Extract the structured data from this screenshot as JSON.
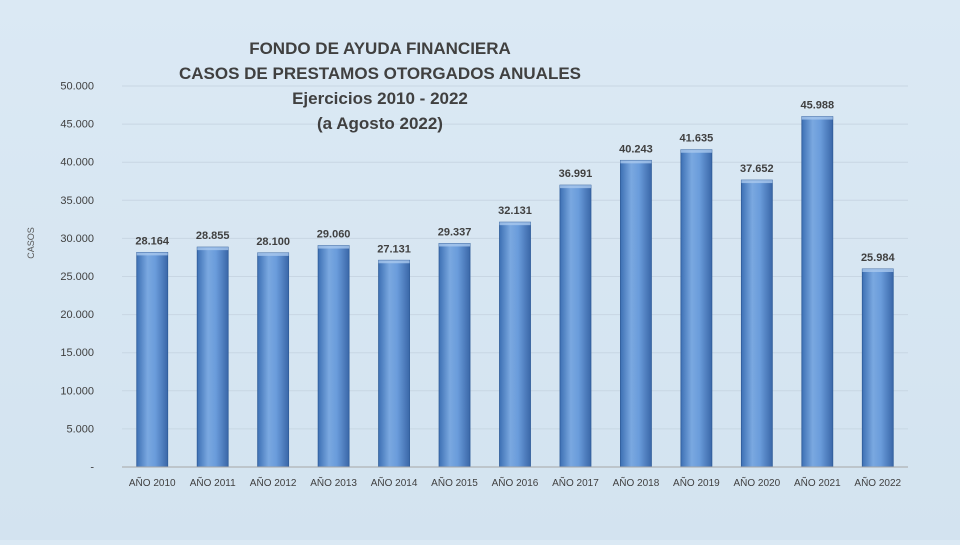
{
  "chart_data": {
    "type": "bar",
    "title_lines": [
      "FONDO DE AYUDA FINANCIERA",
      "CASOS DE PRESTAMOS  OTORGADOS ANUALES",
      "Ejercicios  2010 - 2022",
      "(a Agosto 2022)"
    ],
    "ylabel": "CASOS",
    "xlabel": "",
    "categories": [
      "AÑO 2010",
      "AÑO 2011",
      "AÑO 2012",
      "AÑO 2013",
      "AÑO 2014",
      "AÑO 2015",
      "AÑO 2016",
      "AÑO 2017",
      "AÑO 2018",
      "AÑO 2019",
      "AÑO 2020",
      "AÑO 2021",
      "AÑO 2022"
    ],
    "values": [
      28164,
      28855,
      28100,
      29060,
      27131,
      29337,
      32131,
      36991,
      40243,
      41635,
      37652,
      45988,
      25984
    ],
    "value_labels": [
      "28.164",
      "28.855",
      "28.100",
      "29.060",
      "27.131",
      "29.337",
      "32.131",
      "36.991",
      "40.243",
      "41.635",
      "37.652",
      "45.988",
      "25.984"
    ],
    "ylim": [
      0,
      50000
    ],
    "yticks": [
      0,
      5000,
      10000,
      15000,
      20000,
      25000,
      30000,
      35000,
      40000,
      45000,
      50000
    ],
    "ytick_labels": [
      "-",
      "5.000",
      "10.000",
      "15.000",
      "20.000",
      "25.000",
      "30.000",
      "35.000",
      "40.000",
      "45.000",
      "50.000"
    ],
    "grid": true,
    "legend": "none",
    "colors": {
      "bar_light": "#8db4e2",
      "bar_mid": "#5b8fd0",
      "bar_dark": "#3a6cb0",
      "grid": "#c8d6e3",
      "text": "#404040",
      "axis": "#a6a6a6"
    }
  }
}
